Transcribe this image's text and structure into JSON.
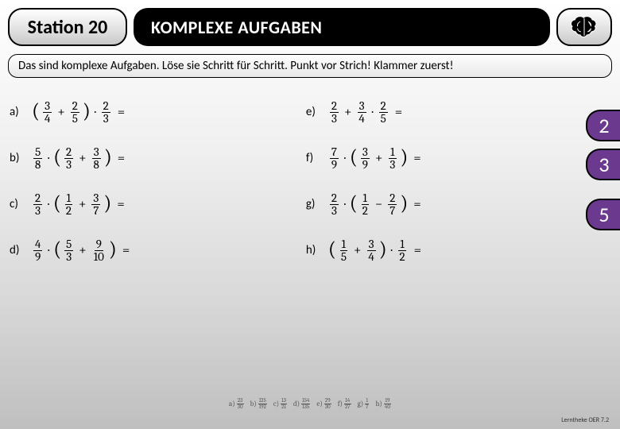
{
  "header": {
    "station": "Station 20",
    "title": "KOMPLEXE AUFGABEN"
  },
  "instruction": "Das sind komplexe Aufgaben. Löse sie Schritt für Schritt. Punkt vor Strich! Klammer zuerst!",
  "badges": [
    "2",
    "3",
    "5"
  ],
  "leftCol": [
    {
      "label": "a)",
      "parts": [
        {
          "t": "lp"
        },
        {
          "t": "f",
          "n": "3",
          "d": "4"
        },
        {
          "t": "op",
          "v": "+"
        },
        {
          "t": "f",
          "n": "2",
          "d": "5"
        },
        {
          "t": "rp"
        },
        {
          "t": "op",
          "v": "·"
        },
        {
          "t": "f",
          "n": "2",
          "d": "3"
        },
        {
          "t": "eq"
        }
      ]
    },
    {
      "label": "b)",
      "parts": [
        {
          "t": "f",
          "n": "5",
          "d": "8"
        },
        {
          "t": "op",
          "v": "·"
        },
        {
          "t": "lp"
        },
        {
          "t": "f",
          "n": "2",
          "d": "3"
        },
        {
          "t": "op",
          "v": "+"
        },
        {
          "t": "f",
          "n": "3",
          "d": "8"
        },
        {
          "t": "rp"
        },
        {
          "t": "eq"
        }
      ]
    },
    {
      "label": "c)",
      "parts": [
        {
          "t": "f",
          "n": "2",
          "d": "3"
        },
        {
          "t": "op",
          "v": "·"
        },
        {
          "t": "lp"
        },
        {
          "t": "f",
          "n": "1",
          "d": "2"
        },
        {
          "t": "op",
          "v": "+"
        },
        {
          "t": "f",
          "n": "3",
          "d": "7"
        },
        {
          "t": "rp"
        },
        {
          "t": "eq"
        }
      ]
    },
    {
      "label": "d)",
      "parts": [
        {
          "t": "f",
          "n": "4",
          "d": "9"
        },
        {
          "t": "op",
          "v": "·"
        },
        {
          "t": "lp"
        },
        {
          "t": "f",
          "n": "5",
          "d": "3"
        },
        {
          "t": "op",
          "v": "+"
        },
        {
          "t": "f",
          "n": "9",
          "d": "10"
        },
        {
          "t": "rp"
        },
        {
          "t": "eq"
        }
      ]
    }
  ],
  "rightCol": [
    {
      "label": "e)",
      "parts": [
        {
          "t": "f",
          "n": "2",
          "d": "3"
        },
        {
          "t": "op",
          "v": "+"
        },
        {
          "t": "f",
          "n": "3",
          "d": "4"
        },
        {
          "t": "op",
          "v": "·"
        },
        {
          "t": "f",
          "n": "2",
          "d": "5"
        },
        {
          "t": "eq"
        }
      ]
    },
    {
      "label": "f)",
      "parts": [
        {
          "t": "f",
          "n": "7",
          "d": "9"
        },
        {
          "t": "op",
          "v": "·"
        },
        {
          "t": "lp"
        },
        {
          "t": "f",
          "n": "3",
          "d": "9"
        },
        {
          "t": "op",
          "v": "+"
        },
        {
          "t": "f",
          "n": "1",
          "d": "3"
        },
        {
          "t": "rp"
        },
        {
          "t": "eq"
        }
      ]
    },
    {
      "label": "g)",
      "parts": [
        {
          "t": "f",
          "n": "2",
          "d": "3"
        },
        {
          "t": "op",
          "v": "·"
        },
        {
          "t": "lp"
        },
        {
          "t": "f",
          "n": "1",
          "d": "2"
        },
        {
          "t": "op",
          "v": "−"
        },
        {
          "t": "f",
          "n": "2",
          "d": "7"
        },
        {
          "t": "rp"
        },
        {
          "t": "eq"
        }
      ]
    },
    {
      "label": "h)",
      "parts": [
        {
          "t": "lp"
        },
        {
          "t": "f",
          "n": "1",
          "d": "5"
        },
        {
          "t": "op",
          "v": "+"
        },
        {
          "t": "f",
          "n": "3",
          "d": "4"
        },
        {
          "t": "rp"
        },
        {
          "t": "op",
          "v": "·"
        },
        {
          "t": "f",
          "n": "1",
          "d": "2"
        },
        {
          "t": "eq"
        }
      ]
    }
  ],
  "answers": [
    {
      "l": "a)",
      "n": "23",
      "d": "30"
    },
    {
      "l": "b)",
      "n": "125",
      "d": "192"
    },
    {
      "l": "c)",
      "n": "13",
      "d": "21"
    },
    {
      "l": "d)",
      "n": "154",
      "d": "135"
    },
    {
      "l": "e)",
      "n": "29",
      "d": "30"
    },
    {
      "l": "f)",
      "n": "14",
      "d": "27"
    },
    {
      "l": "g)",
      "n": "1",
      "d": "7"
    },
    {
      "l": "h)",
      "n": "19",
      "d": "40"
    }
  ],
  "footer": "Lerntheke OER 7.2",
  "colors": {
    "badge_bg": "#6b3a8f",
    "title_bg": "#000000"
  }
}
